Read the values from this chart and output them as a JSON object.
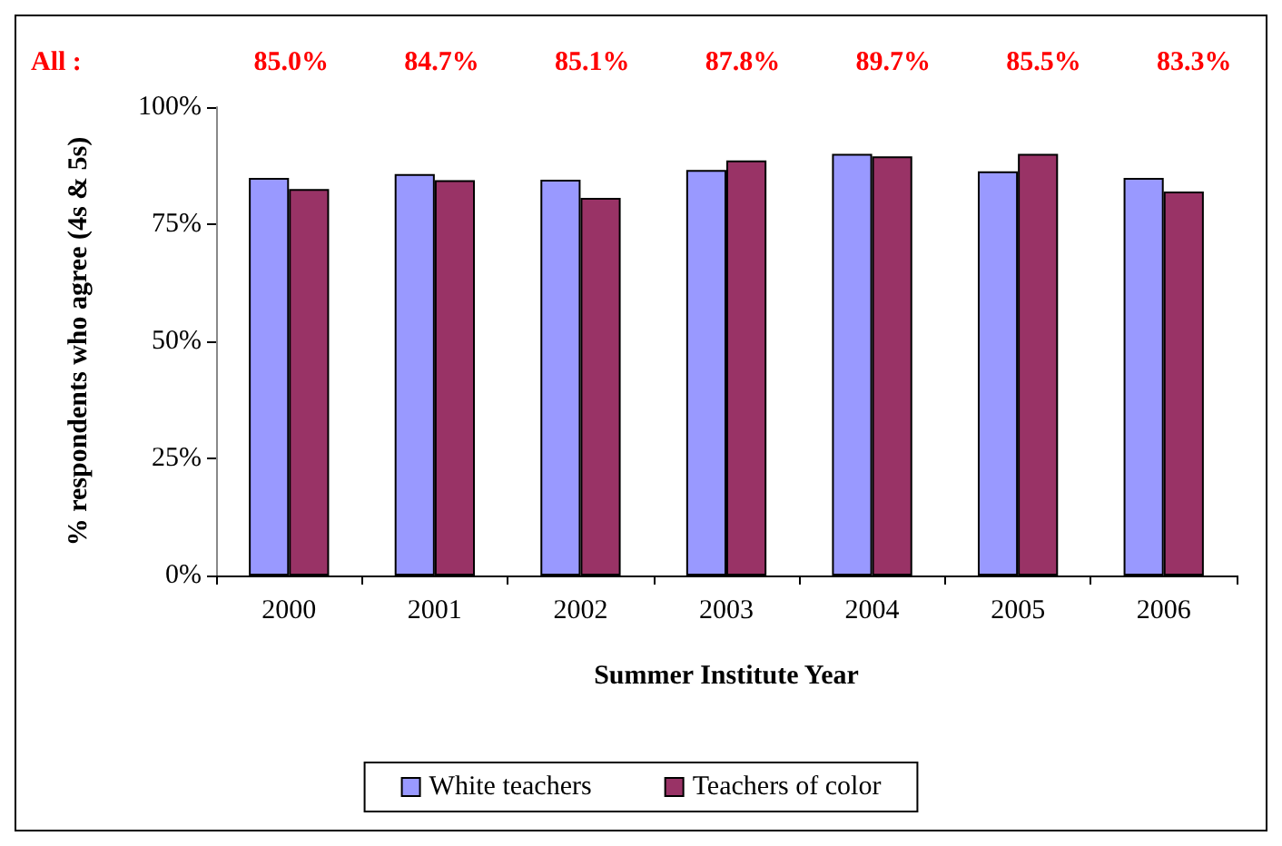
{
  "chart_data": {
    "type": "bar",
    "xlabel": "Summer Institute Year",
    "ylabel": "% respondents who agree (4s & 5s)",
    "categories": [
      "2000",
      "2001",
      "2002",
      "2003",
      "2004",
      "2005",
      "2006"
    ],
    "series": [
      {
        "name": "White teachers",
        "color": "#9999ff",
        "values": [
          84.9,
          85.7,
          84.5,
          86.6,
          90.0,
          86.3,
          84.9
        ]
      },
      {
        "name": "Teachers of color",
        "color": "#993366",
        "values": [
          82.5,
          84.4,
          80.6,
          88.6,
          89.5,
          90.0,
          82.0
        ]
      }
    ],
    "ylim": [
      0,
      100
    ],
    "yticks": [
      {
        "value": 0,
        "label": "0%"
      },
      {
        "value": 25,
        "label": "25%"
      },
      {
        "value": 50,
        "label": "50%"
      },
      {
        "value": 75,
        "label": "75%"
      },
      {
        "value": 100,
        "label": "100%"
      }
    ],
    "annotations": [
      "All :",
      "85.0%",
      "84.7%",
      "85.1%",
      "87.8%",
      "89.7%",
      "85.5%",
      "83.3%"
    ],
    "grid": false,
    "legend": "bottom"
  }
}
